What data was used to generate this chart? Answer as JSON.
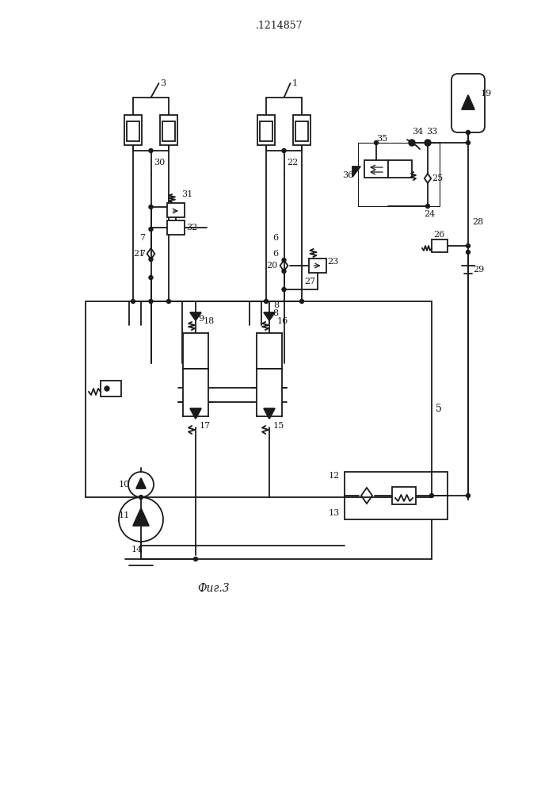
{
  "title": ".1214857",
  "caption": "Фиг.3",
  "bg_color": "#ffffff",
  "line_color": "#1a1a1a",
  "title_fontsize": 9,
  "caption_fontsize": 10
}
